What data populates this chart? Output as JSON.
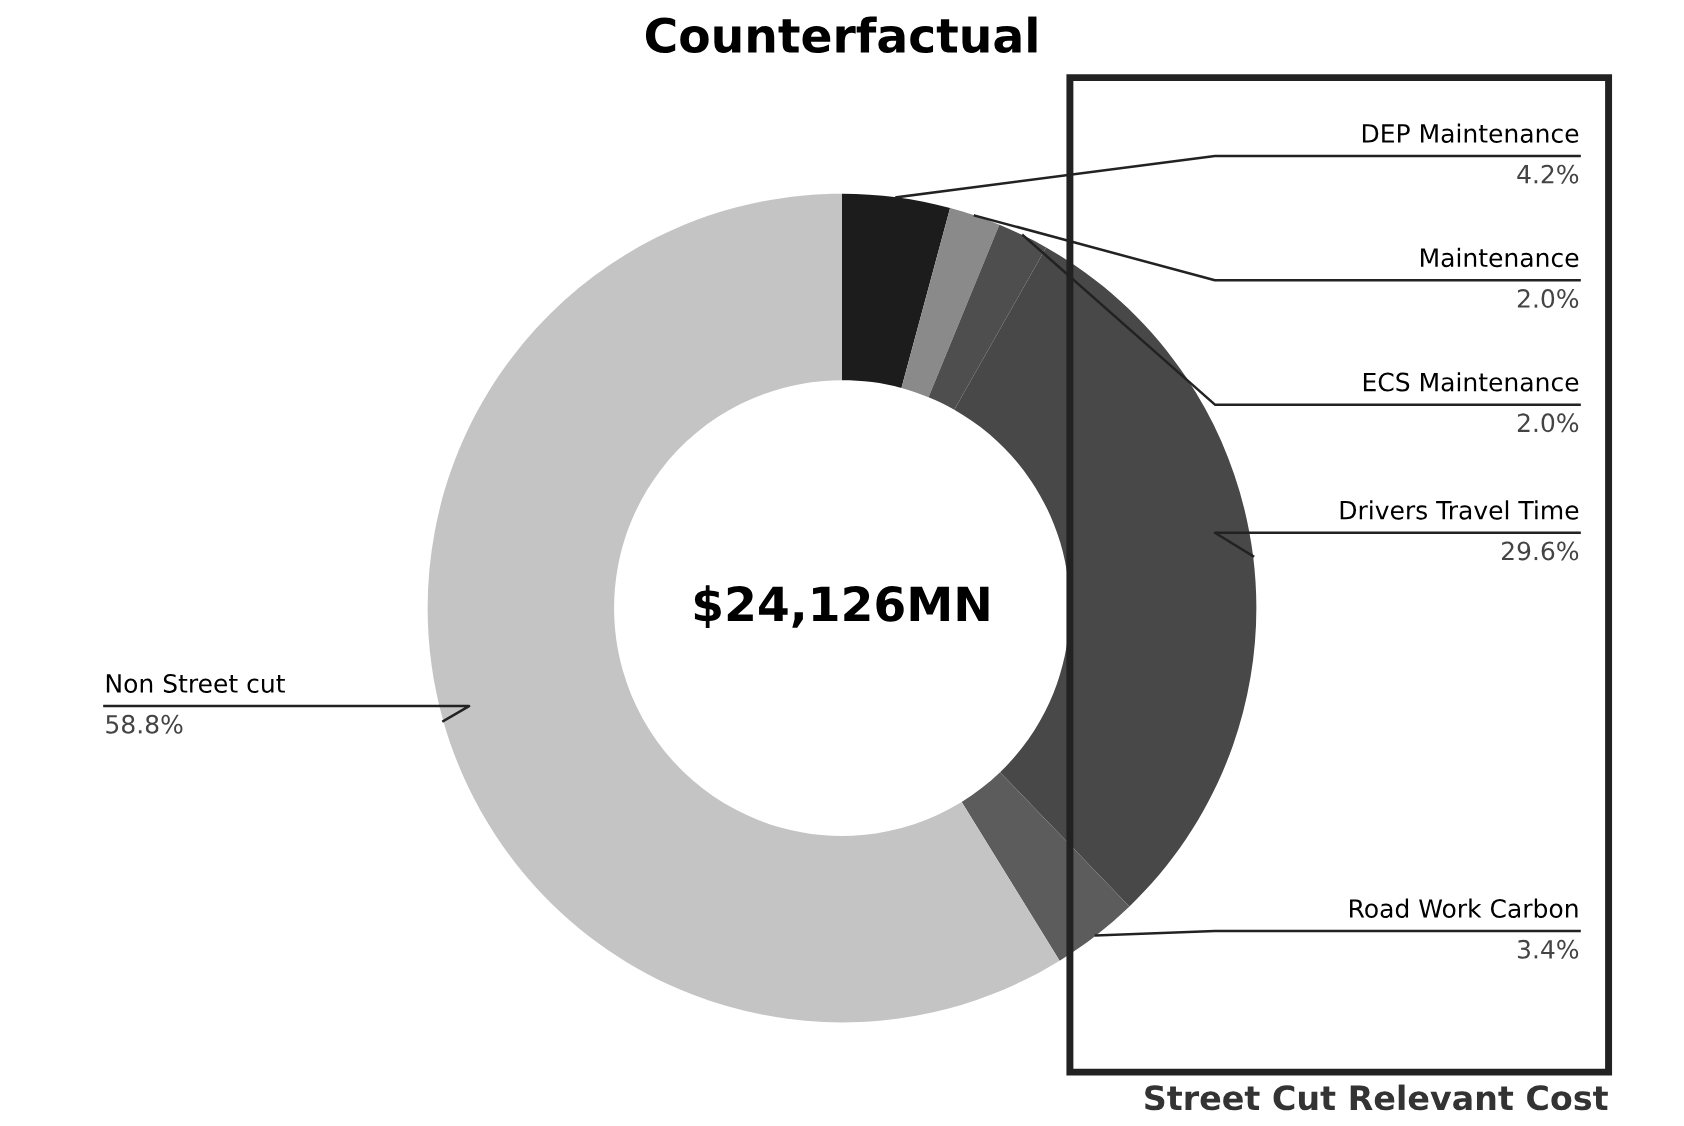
{
  "chart_data": {
    "type": "donut",
    "title": "Counterfactual",
    "categories": [
      "DEP Maintenance",
      "Maintenance",
      "ECS Maintenance",
      "Drivers Travel Time",
      "Road Work Carbon",
      "Non Street cut"
    ],
    "values": [
      4.2,
      2.0,
      2.0,
      29.6,
      3.4,
      58.8
    ],
    "value_labels": [
      "4.2%",
      "2.0%",
      "2.0%",
      "29.6%",
      "3.4%",
      "58.8%"
    ],
    "colors": [
      "#1c1c1c",
      "#8a8a8a",
      "#4e4e4e",
      "#484848",
      "#5c5c5c",
      "#c4c4c4"
    ],
    "annotations": [
      "$24,126MN",
      "Street Cut Relevant Cost"
    ]
  }
}
